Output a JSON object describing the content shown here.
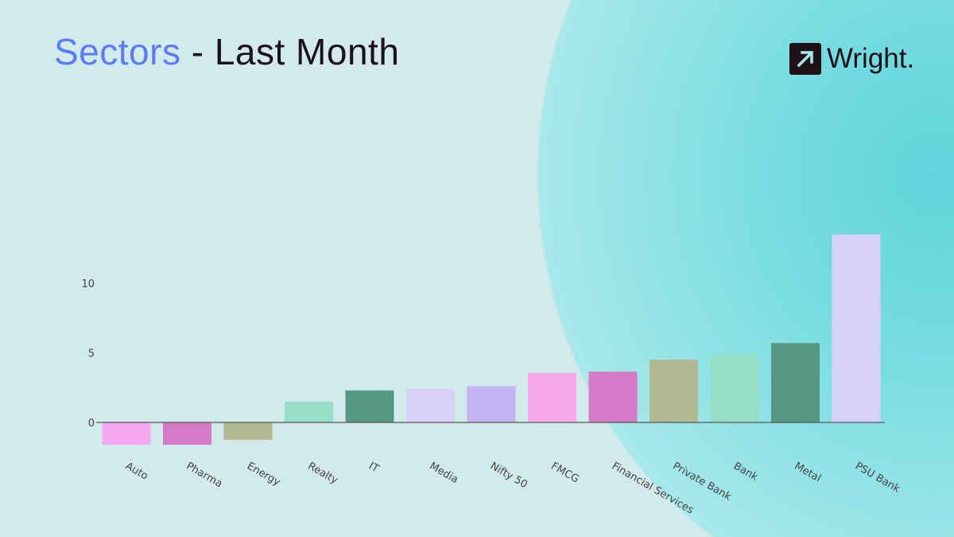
{
  "header": {
    "title_accent": "Sectors",
    "title_rest": " - Last Month"
  },
  "logo": {
    "text": "Wright.",
    "icon": "arrow-up-right-icon"
  },
  "chart_data": {
    "type": "bar",
    "title": "",
    "xlabel": "",
    "ylabel": "",
    "categories": [
      "Auto",
      "Pharma",
      "Energy",
      "Realty",
      "IT",
      "Media",
      "Nifty 50",
      "FMCG",
      "Financial Services",
      "Private Bank",
      "Bank",
      "Metal",
      "PSU Bank"
    ],
    "values": [
      -1.6,
      -1.6,
      -1.25,
      1.5,
      2.3,
      2.4,
      2.6,
      3.55,
      3.65,
      4.5,
      4.9,
      5.7,
      13.5
    ],
    "colors": [
      "#f9a8ef",
      "#d67ac8",
      "#b0b98f",
      "#96dec8",
      "#559884",
      "#d8d0f7",
      "#c4b3f5",
      "#f9a8ef",
      "#d67ac8",
      "#b0b98f",
      "#96dec8",
      "#559884",
      "#d8d0f7"
    ],
    "yticks": [
      0,
      5,
      10
    ],
    "ylim": [
      -2.5,
      14
    ],
    "grid": false,
    "legend": "none"
  }
}
